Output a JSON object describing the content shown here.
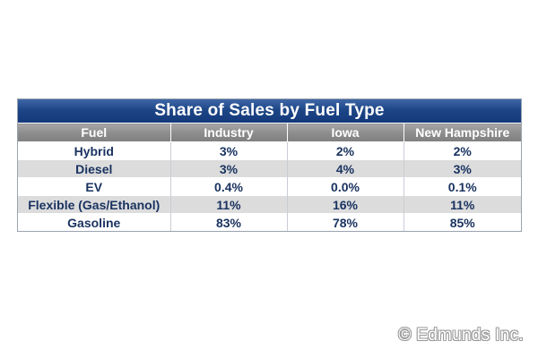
{
  "chart_data": {
    "type": "table",
    "title": "Share of Sales by Fuel Type",
    "columns": [
      "Fuel",
      "Industry",
      "Iowa",
      "New Hampshire"
    ],
    "rows": [
      [
        "Hybrid",
        "3%",
        "2%",
        "2%"
      ],
      [
        "Diesel",
        "3%",
        "4%",
        "3%"
      ],
      [
        "EV",
        "0.4%",
        "0.0%",
        "0.1%"
      ],
      [
        "Flexible (Gas/Ethanol)",
        "11%",
        "16%",
        "11%"
      ],
      [
        "Gasoline",
        "83%",
        "78%",
        "85%"
      ]
    ]
  },
  "watermark": "© Edmunds Inc.",
  "colors": {
    "title_bar": "#1d4687",
    "header_bar": "#8c8c8c",
    "row_alt": "#dcdcdc",
    "cell_text": "#1a3360"
  }
}
